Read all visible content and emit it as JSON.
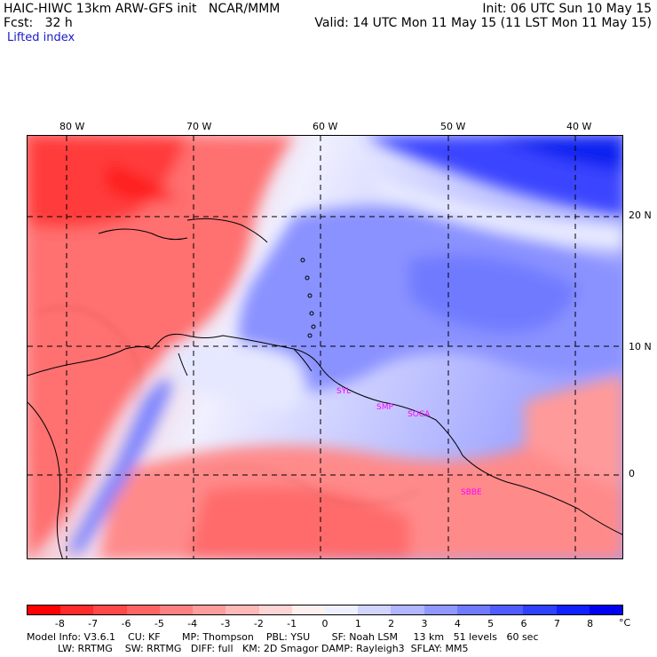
{
  "header": {
    "model_title": "HAIC-HIWC 13km ARW-GFS init   NCAR/MMM",
    "init_time": "Init: 06 UTC Sun 10 May 15",
    "forecast_label": "Fcst:   32 h",
    "valid_time": "Valid: 14 UTC Mon 11 May 15 (11 LST Mon 11 May 15)",
    "field_name": "Lifted index"
  },
  "map": {
    "longitude_labels": [
      "80 W",
      "70 W",
      "60 W",
      "50 W",
      "40 W"
    ],
    "latitude_labels": [
      "20 N",
      "10 N",
      "0"
    ],
    "stations": [
      "SYL",
      "SMP",
      "SOCA",
      "SBBE"
    ],
    "station_color": "#ff00ff"
  },
  "colorbar": {
    "unit": "°C",
    "labels": [
      "-8",
      "-7",
      "-6",
      "-5",
      "-4",
      "-3",
      "-2",
      "-1",
      "0",
      "1",
      "2",
      "3",
      "4",
      "5",
      "6",
      "7",
      "8"
    ],
    "colors": [
      "#ff0000",
      "#ff2a2a",
      "#ff4848",
      "#ff6464",
      "#ff8080",
      "#ff9c9c",
      "#ffb8b8",
      "#ffd4d4",
      "#fff0f0",
      "#eef0ff",
      "#d0d4ff",
      "#b0b6ff",
      "#9098ff",
      "#707aff",
      "#505cff",
      "#3040ff",
      "#1020ff",
      "#0000f0"
    ]
  },
  "footer": {
    "line1": "Model Info: V3.6.1    CU: KF       MP: Thompson    PBL: YSU       SF: Noah LSM     13 km   51 levels   60 sec",
    "line2": "          LW: RRTMG    SW: RRTMG   DIFF: full   KM: 2D Smagor DAMP: Rayleigh3  SFLAY: MM5"
  }
}
